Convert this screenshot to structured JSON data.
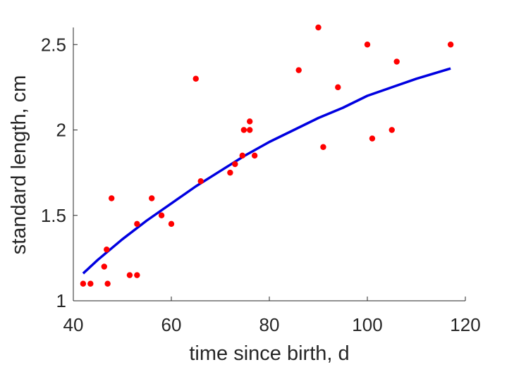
{
  "chart_data": {
    "type": "scatter",
    "title": "",
    "xlabel": "time since birth, d",
    "ylabel": "standard length, cm",
    "xlim": [
      40,
      120
    ],
    "ylim": [
      1,
      2.6
    ],
    "xticks": [
      40,
      60,
      80,
      100,
      120
    ],
    "yticks": [
      1,
      1.5,
      2,
      2.5
    ],
    "xtick_labels": [
      "40",
      "60",
      "80",
      "100",
      "120"
    ],
    "ytick_labels": [
      "1",
      "1.5",
      "2",
      "2.5"
    ],
    "grid": false,
    "legend": "none",
    "series": [
      {
        "kind": "scatter",
        "color": "#ff0000",
        "points": [
          [
            42,
            1.1
          ],
          [
            43.5,
            1.1
          ],
          [
            46.3,
            1.2
          ],
          [
            46.8,
            1.3
          ],
          [
            47,
            1.1
          ],
          [
            47.8,
            1.6
          ],
          [
            51.5,
            1.15
          ],
          [
            53,
            1.15
          ],
          [
            53,
            1.45
          ],
          [
            56,
            1.6
          ],
          [
            58,
            1.5
          ],
          [
            60,
            1.45
          ],
          [
            65,
            2.3
          ],
          [
            66,
            1.7
          ],
          [
            72,
            1.75
          ],
          [
            73,
            1.8
          ],
          [
            74.5,
            1.85
          ],
          [
            74.8,
            2.0
          ],
          [
            76,
            2.05
          ],
          [
            76,
            2.0
          ],
          [
            77,
            1.85
          ],
          [
            86,
            2.35
          ],
          [
            90,
            2.6
          ],
          [
            91,
            1.9
          ],
          [
            94,
            2.25
          ],
          [
            100,
            2.5
          ],
          [
            101,
            1.95
          ],
          [
            105,
            2.0
          ],
          [
            106,
            2.4
          ],
          [
            117,
            2.5
          ]
        ]
      },
      {
        "kind": "line",
        "color": "#0000e0",
        "points": [
          [
            42,
            1.16
          ],
          [
            45,
            1.24
          ],
          [
            50,
            1.36
          ],
          [
            55,
            1.47
          ],
          [
            60,
            1.57
          ],
          [
            65,
            1.67
          ],
          [
            70,
            1.76
          ],
          [
            75,
            1.85
          ],
          [
            80,
            1.93
          ],
          [
            85,
            2.0
          ],
          [
            90,
            2.07
          ],
          [
            95,
            2.13
          ],
          [
            100,
            2.2
          ],
          [
            105,
            2.25
          ],
          [
            110,
            2.3
          ],
          [
            117,
            2.36
          ]
        ]
      }
    ]
  }
}
